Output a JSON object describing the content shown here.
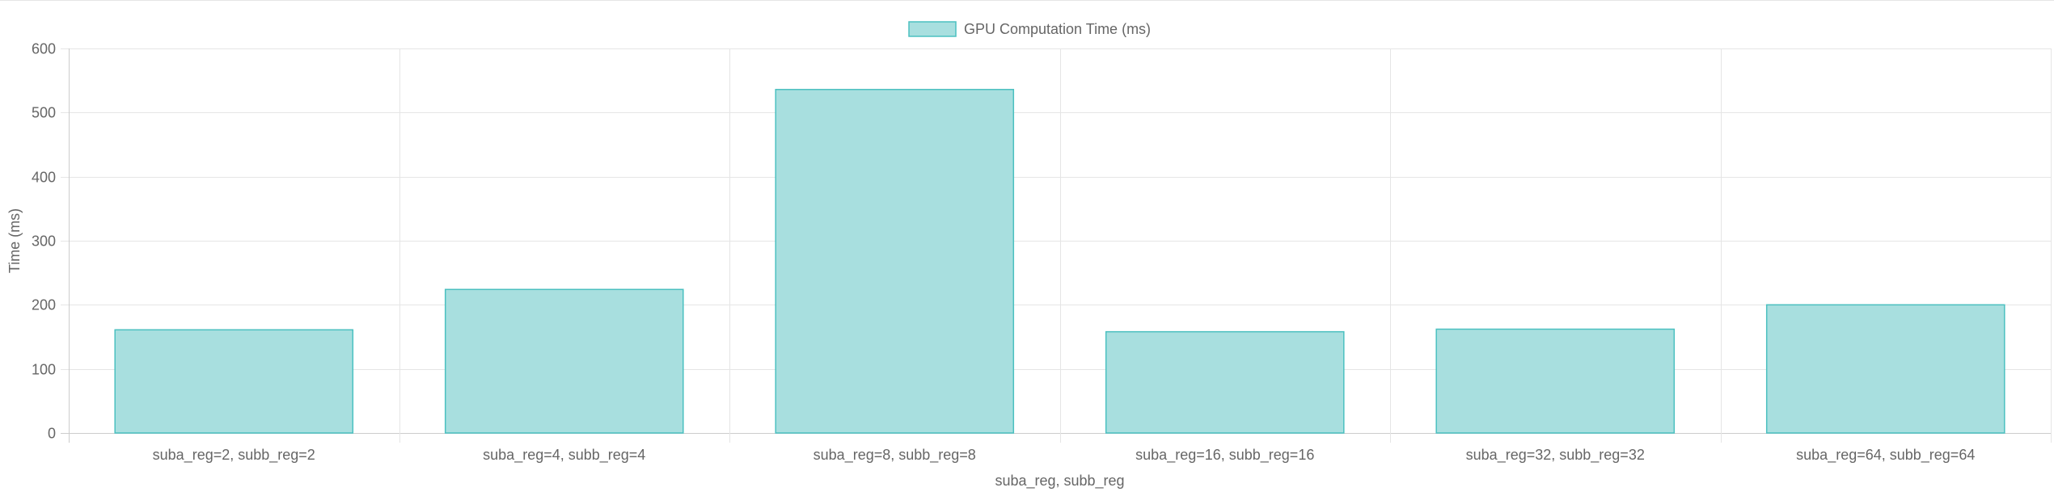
{
  "chart_data": {
    "type": "bar",
    "categories": [
      "suba_reg=2, subb_reg=2",
      "suba_reg=4, subb_reg=4",
      "suba_reg=8, subb_reg=8",
      "suba_reg=16, subb_reg=16",
      "suba_reg=32, subb_reg=32",
      "suba_reg=64, subb_reg=64"
    ],
    "series": [
      {
        "name": "GPU Computation Time (ms)",
        "values": [
          161,
          224,
          536,
          158,
          162,
          200
        ]
      }
    ],
    "xlabel": "suba_reg, subb_reg",
    "ylabel": "Time (ms)",
    "ylim": [
      0,
      600
    ],
    "yticks": [
      0,
      100,
      200,
      300,
      400,
      500,
      600
    ],
    "grid": true,
    "legend": "top-center",
    "colors": {
      "bar_fill": "#a8dfdf",
      "bar_border": "#4bc0c0",
      "grid": "#e5e5e5",
      "axis": "#cccccc",
      "text": "#666666"
    }
  }
}
